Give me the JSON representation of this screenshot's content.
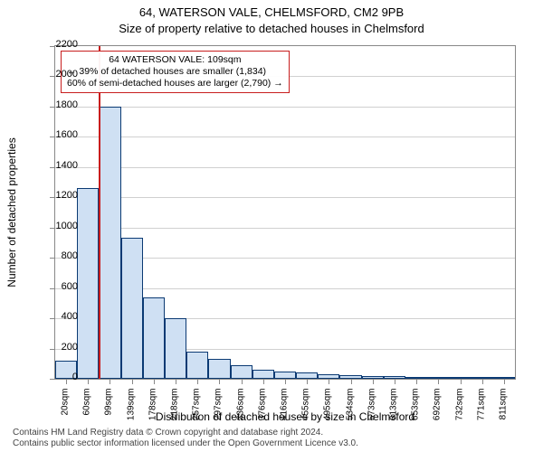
{
  "title": "64, WATERSON VALE, CHELMSFORD, CM2 9PB",
  "subtitle": "Size of property relative to detached houses in Chelmsford",
  "y_axis": {
    "label": "Number of detached properties",
    "min": 0,
    "max": 2200,
    "tick_step": 200,
    "ticks": [
      0,
      200,
      400,
      600,
      800,
      1000,
      1200,
      1400,
      1600,
      1800,
      2000,
      2200
    ]
  },
  "x_axis": {
    "label": "Distribution of detached houses by size in Chelmsford",
    "tick_labels": [
      "20sqm",
      "60sqm",
      "99sqm",
      "139sqm",
      "178sqm",
      "218sqm",
      "257sqm",
      "297sqm",
      "336sqm",
      "376sqm",
      "416sqm",
      "455sqm",
      "495sqm",
      "534sqm",
      "573sqm",
      "613sqm",
      "653sqm",
      "692sqm",
      "732sqm",
      "771sqm",
      "811sqm"
    ]
  },
  "histogram": {
    "type": "histogram",
    "bar_fill": "#cfe0f3",
    "bar_border": "#0b3a73",
    "grid_color": "#d0d0d0",
    "axis_color": "#888888",
    "background_color": "#ffffff",
    "bins": 21,
    "values": [
      120,
      1260,
      1800,
      930,
      540,
      400,
      180,
      130,
      90,
      60,
      50,
      40,
      30,
      25,
      20,
      18,
      15,
      12,
      10,
      8,
      6
    ]
  },
  "reference_line": {
    "at_bin_boundary": 2,
    "color": "#c81e1e"
  },
  "annotation": {
    "line1": "64 WATERSON VALE: 109sqm",
    "line2": "← 39% of detached houses are smaller (1,834)",
    "line3": "60% of semi-detached houses are larger (2,790) →",
    "border_color": "#c81e1e"
  },
  "footer": {
    "line1": "Contains HM Land Registry data © Crown copyright and database right 2024.",
    "line2": "Contains public sector information licensed under the Open Government Licence v3.0."
  },
  "fontsize": {
    "title": 13,
    "axis_label": 12,
    "tick": 11,
    "annotation": 10.5,
    "footer": 10
  }
}
